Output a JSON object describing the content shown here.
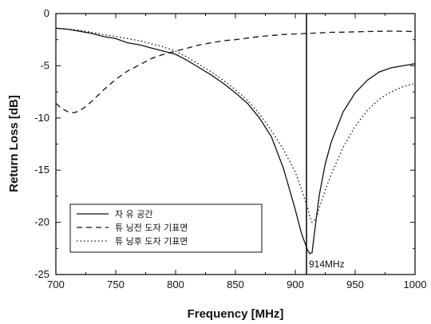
{
  "chart_data": {
    "type": "line",
    "xlabel": "Frequency [MHz]",
    "ylabel": "Return Loss [dB]",
    "xlim": [
      700,
      1000
    ],
    "ylim": [
      -25,
      0
    ],
    "xticks": [
      "700",
      "750",
      "800",
      "850",
      "900",
      "950",
      "1000"
    ],
    "yticks": [
      "0",
      "-5",
      "-10",
      "-15",
      "-20",
      "-25"
    ],
    "grid": false,
    "legend_position": "bottom-left",
    "series": [
      {
        "name": "자 유 공간",
        "style": "solid",
        "x": [
          700,
          710,
          720,
          730,
          740,
          750,
          760,
          770,
          780,
          790,
          800,
          810,
          820,
          830,
          840,
          850,
          860,
          870,
          880,
          890,
          895,
          900,
          905,
          910,
          912,
          914,
          916,
          918,
          920,
          925,
          930,
          940,
          950,
          960,
          970,
          980,
          990,
          1000
        ],
        "y": [
          -1.4,
          -1.5,
          -1.7,
          -1.9,
          -2.2,
          -2.4,
          -2.8,
          -3.0,
          -3.3,
          -3.6,
          -3.9,
          -4.5,
          -5.2,
          -5.9,
          -6.7,
          -7.6,
          -8.6,
          -10.0,
          -11.8,
          -14.8,
          -16.8,
          -18.8,
          -21.0,
          -22.6,
          -23.0,
          -22.9,
          -21.0,
          -19.2,
          -17.4,
          -14.4,
          -12.3,
          -9.4,
          -7.6,
          -6.4,
          -5.6,
          -5.2,
          -5.0,
          -4.8
        ]
      },
      {
        "name": "튜 닝전 도자 기표면",
        "style": "dashed",
        "x": [
          700,
          705,
          710,
          715,
          720,
          725,
          730,
          740,
          750,
          760,
          770,
          780,
          790,
          800,
          810,
          820,
          830,
          840,
          850,
          860,
          870,
          880,
          890,
          900,
          910,
          920,
          930,
          940,
          950,
          960,
          970,
          980,
          990,
          1000
        ],
        "y": [
          -8.6,
          -9.1,
          -9.4,
          -9.5,
          -9.3,
          -8.9,
          -8.4,
          -7.3,
          -6.3,
          -5.5,
          -4.9,
          -4.3,
          -3.9,
          -3.6,
          -3.3,
          -3.0,
          -2.8,
          -2.6,
          -2.5,
          -2.35,
          -2.2,
          -2.1,
          -2.0,
          -1.95,
          -1.9,
          -1.85,
          -1.8,
          -1.78,
          -1.75,
          -1.72,
          -1.7,
          -1.68,
          -1.7,
          -1.72
        ]
      },
      {
        "name": "튜 닝후 도자 기표면",
        "style": "dotted",
        "x": [
          700,
          710,
          720,
          730,
          740,
          750,
          760,
          770,
          780,
          790,
          800,
          810,
          820,
          830,
          840,
          850,
          860,
          870,
          880,
          890,
          900,
          905,
          910,
          912,
          914,
          916,
          918,
          920,
          925,
          930,
          940,
          950,
          960,
          970,
          980,
          990,
          1000
        ],
        "y": [
          -1.4,
          -1.5,
          -1.6,
          -1.8,
          -2.0,
          -2.2,
          -2.4,
          -2.6,
          -2.9,
          -3.2,
          -3.6,
          -4.2,
          -4.9,
          -5.6,
          -6.4,
          -7.3,
          -8.3,
          -9.6,
          -11.2,
          -13.0,
          -15.2,
          -16.8,
          -18.5,
          -19.4,
          -20.0,
          -19.8,
          -19.4,
          -18.6,
          -16.9,
          -15.4,
          -12.8,
          -10.8,
          -9.3,
          -8.2,
          -7.5,
          -7.0,
          -6.7
        ]
      }
    ],
    "annotation": {
      "text": "914MHz",
      "x": 914
    }
  }
}
